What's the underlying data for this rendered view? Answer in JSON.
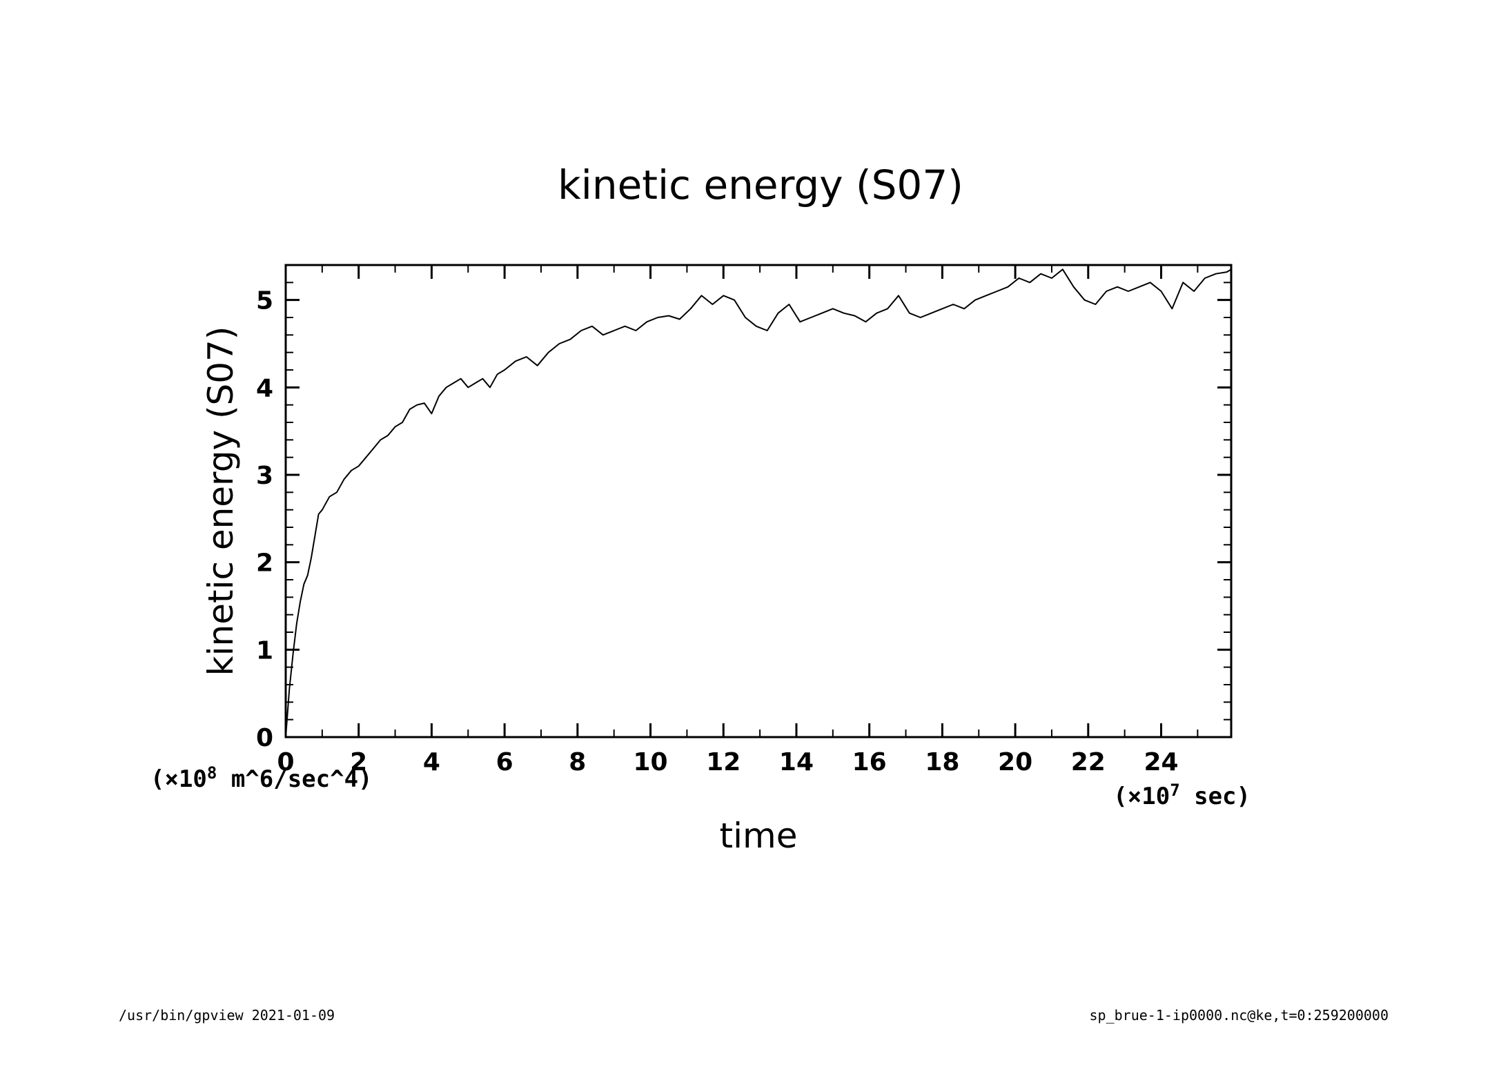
{
  "chart_data": {
    "type": "line",
    "title": "kinetic energy (S07)",
    "xlabel": "time",
    "ylabel": "kinetic energy (S07)",
    "x_unit_prefix": "(×10",
    "x_unit_exp": "7",
    "x_unit_suffix": " sec)",
    "y_unit_prefix": "(×10",
    "y_unit_exp": "8",
    "y_unit_suffix": " m^6/sec^4)",
    "xlim": [
      0,
      25.92
    ],
    "ylim": [
      0,
      5.4
    ],
    "x_ticks": [
      0,
      2,
      4,
      6,
      8,
      10,
      12,
      14,
      16,
      18,
      20,
      22,
      24
    ],
    "y_ticks": [
      0,
      1,
      2,
      3,
      4,
      5
    ],
    "grid": false,
    "series": [
      {
        "x": [
          0,
          0.1,
          0.2,
          0.3,
          0.4,
          0.5,
          0.6,
          0.7,
          0.8,
          0.9,
          1.0,
          1.2,
          1.4,
          1.6,
          1.8,
          2.0,
          2.2,
          2.4,
          2.6,
          2.8,
          3.0,
          3.2,
          3.4,
          3.6,
          3.8,
          4.0,
          4.2,
          4.4,
          4.6,
          4.8,
          5.0,
          5.2,
          5.4,
          5.6,
          5.8,
          6.0,
          6.3,
          6.6,
          6.9,
          7.2,
          7.5,
          7.8,
          8.1,
          8.4,
          8.7,
          9.0,
          9.3,
          9.6,
          9.9,
          10.2,
          10.5,
          10.8,
          11.1,
          11.4,
          11.7,
          12.0,
          12.3,
          12.6,
          12.9,
          13.2,
          13.5,
          13.8,
          14.1,
          14.4,
          14.7,
          15.0,
          15.3,
          15.6,
          15.9,
          16.2,
          16.5,
          16.8,
          17.1,
          17.4,
          17.7,
          18.0,
          18.3,
          18.6,
          18.9,
          19.2,
          19.5,
          19.8,
          20.1,
          20.4,
          20.7,
          21.0,
          21.3,
          21.6,
          21.9,
          22.2,
          22.5,
          22.8,
          23.1,
          23.4,
          23.7,
          24.0,
          24.3,
          24.6,
          24.9,
          25.2,
          25.5,
          25.8,
          25.92
        ],
        "y": [
          0.0,
          0.55,
          0.95,
          1.3,
          1.55,
          1.75,
          1.85,
          2.05,
          2.3,
          2.55,
          2.6,
          2.75,
          2.8,
          2.95,
          3.05,
          3.1,
          3.2,
          3.3,
          3.4,
          3.45,
          3.55,
          3.6,
          3.75,
          3.8,
          3.82,
          3.7,
          3.9,
          4.0,
          4.05,
          4.1,
          4.0,
          4.05,
          4.1,
          4.0,
          4.15,
          4.2,
          4.3,
          4.35,
          4.25,
          4.4,
          4.5,
          4.55,
          4.65,
          4.7,
          4.6,
          4.65,
          4.7,
          4.65,
          4.75,
          4.8,
          4.82,
          4.78,
          4.9,
          5.05,
          4.95,
          5.05,
          5.0,
          4.8,
          4.7,
          4.65,
          4.85,
          4.95,
          4.75,
          4.8,
          4.85,
          4.9,
          4.85,
          4.82,
          4.75,
          4.85,
          4.9,
          5.05,
          4.85,
          4.8,
          4.85,
          4.9,
          4.95,
          4.9,
          5.0,
          5.05,
          5.1,
          5.15,
          5.25,
          5.2,
          5.3,
          5.25,
          5.35,
          5.15,
          5.0,
          4.95,
          5.1,
          5.15,
          5.1,
          5.15,
          5.2,
          5.1,
          4.9,
          5.2,
          5.1,
          5.25,
          5.3,
          5.32,
          5.35
        ]
      }
    ]
  },
  "footer": {
    "left": "/usr/bin/gpview   2021-01-09",
    "right": "sp_brue-1-ip0000.nc@ke,t=0:259200000"
  }
}
